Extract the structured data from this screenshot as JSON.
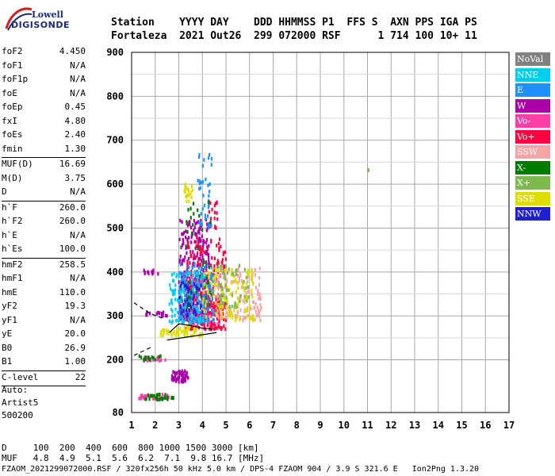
{
  "logo": {
    "line1": "Lowell",
    "line2": "DIGISONDE"
  },
  "header": {
    "labels_row": "Station    YYYY DAY    DDD HHMMSS P1  FFS S  AXN PPS IGA PS",
    "values_row": "Fortaleza  2021 Out26  299 072000 RSF      1 714 100 10+ 11"
  },
  "params": [
    {
      "label": "foF2",
      "value": "4.450"
    },
    {
      "label": "foF1",
      "value": "N/A"
    },
    {
      "label": "foF1p",
      "value": "N/A"
    },
    {
      "label": "foE",
      "value": "N/A"
    },
    {
      "label": "foEp",
      "value": "0.45"
    },
    {
      "label": "fxI",
      "value": "4.80"
    },
    {
      "label": "foEs",
      "value": "2.40"
    },
    {
      "label": "fmin",
      "value": "1.30"
    },
    {
      "sep": true
    },
    {
      "label": "MUF(D)",
      "value": "16.69"
    },
    {
      "label": "M(D)",
      "value": "3.75"
    },
    {
      "label": "D",
      "value": "N/A"
    },
    {
      "sep": true
    },
    {
      "label": "h`F",
      "value": "260.0"
    },
    {
      "label": "h`F2",
      "value": "260.0"
    },
    {
      "label": "h`E",
      "value": "N/A"
    },
    {
      "label": "h`Es",
      "value": "100.0"
    },
    {
      "sep": true
    },
    {
      "label": "hmF2",
      "value": "258.5"
    },
    {
      "label": "hmF1",
      "value": "N/A"
    },
    {
      "label": "hmE",
      "value": "110.0"
    },
    {
      "label": "yF2",
      "value": "19.3"
    },
    {
      "label": "yF1",
      "value": "N/A"
    },
    {
      "label": "yE",
      "value": "20.0"
    },
    {
      "label": "B0",
      "value": "26.9"
    },
    {
      "label": "B1",
      "value": "1.00"
    },
    {
      "sep": true
    },
    {
      "label": "C-level",
      "value": "22"
    },
    {
      "sep": true
    }
  ],
  "auto": {
    "line1": "Auto:",
    "line2": "Artist5",
    "line3": "500200"
  },
  "footer": {
    "d_row": "D     100  200  400  600  800 1000 1500 3000 [km]",
    "muf_row": "MUF   4.8  4.9  5.1  5.6  6.2  7.1  9.8 16.7 [MHz]",
    "file_row": "FZAOM_2021299072000.RSF / 320fx256h 50 kHz 5.0 km / DPS-4 FZAOM 904 / 3.9 S 321.6 E   Ion2Png 1.3.20"
  },
  "legend": [
    {
      "label": "NoVal",
      "color": "#808080"
    },
    {
      "label": "NNE",
      "color": "#00ccee"
    },
    {
      "label": "E",
      "color": "#1e90ff"
    },
    {
      "label": "W",
      "color": "#aa00aa"
    },
    {
      "label": "Vo-",
      "color": "#ff3fa8"
    },
    {
      "label": "Vo+",
      "color": "#ff0040"
    },
    {
      "label": "SSW",
      "color": "#f5a5a5"
    },
    {
      "label": "X-",
      "color": "#007a00"
    },
    {
      "label": "X+",
      "color": "#80b850"
    },
    {
      "label": "SSE",
      "color": "#dddd00"
    },
    {
      "label": "NNW",
      "color": "#2020d0"
    }
  ],
  "chart_data": {
    "type": "scatter",
    "title": "",
    "xlabel": "",
    "ylabel": "",
    "xlim": [
      1,
      17
    ],
    "ylim": [
      80,
      900
    ],
    "x_ticks": [
      1,
      2,
      3,
      4,
      5,
      6,
      7,
      8,
      9,
      10,
      11,
      12,
      13,
      14,
      15,
      16,
      17
    ],
    "y_ticks": [
      80,
      200,
      300,
      400,
      500,
      600,
      700,
      800,
      900
    ],
    "grid": true,
    "legend_position": "right",
    "series": [
      {
        "name": "W",
        "color": "#aa00aa",
        "clusters": [
          {
            "x": [
              2.7,
              3.4
            ],
            "y": [
              150,
              175
            ],
            "n": 60
          },
          {
            "x": [
              3.0,
              4.3
            ],
            "y": [
              290,
              520
            ],
            "n": 300
          },
          {
            "x": [
              1.5,
              2.2
            ],
            "y": [
              395,
              405
            ],
            "n": 12
          },
          {
            "x": [
              1.6,
              2.6
            ],
            "y": [
              300,
              310
            ],
            "n": 15
          }
        ]
      },
      {
        "name": "Vo-",
        "color": "#ff3fa8",
        "clusters": [
          {
            "x": [
              1.3,
              2.6
            ],
            "y": [
              112,
              122
            ],
            "n": 40
          },
          {
            "x": [
              1.5,
              2.5
            ],
            "y": [
              198,
              208
            ],
            "n": 20
          },
          {
            "x": [
              3.5,
              4.8
            ],
            "y": [
              280,
              400
            ],
            "n": 120
          }
        ]
      },
      {
        "name": "Vo+",
        "color": "#ff0040",
        "clusters": [
          {
            "x": [
              3.3,
              5.0
            ],
            "y": [
              270,
              480
            ],
            "n": 220
          },
          {
            "x": [
              4.2,
              4.7
            ],
            "y": [
              500,
              560
            ],
            "n": 20
          }
        ]
      },
      {
        "name": "E",
        "color": "#1e90ff",
        "clusters": [
          {
            "x": [
              3.0,
              4.5
            ],
            "y": [
              285,
              420
            ],
            "n": 180
          },
          {
            "x": [
              3.8,
              4.4
            ],
            "y": [
              500,
              700
            ],
            "n": 40
          }
        ]
      },
      {
        "name": "NNE",
        "color": "#00ccee",
        "clusters": [
          {
            "x": [
              2.6,
              4.2
            ],
            "y": [
              285,
              400
            ],
            "n": 120
          }
        ]
      },
      {
        "name": "SSW",
        "color": "#f5a5a5",
        "clusters": [
          {
            "x": [
              4.5,
              6.5
            ],
            "y": [
              290,
              410
            ],
            "n": 120
          }
        ]
      },
      {
        "name": "SSE",
        "color": "#dddd00",
        "clusters": [
          {
            "x": [
              4.0,
              6.2
            ],
            "y": [
              290,
              410
            ],
            "n": 120
          },
          {
            "x": [
              2.2,
              4.0
            ],
            "y": [
              255,
              275
            ],
            "n": 60
          },
          {
            "x": [
              3.2,
              3.6
            ],
            "y": [
              560,
              600
            ],
            "n": 20
          }
        ]
      },
      {
        "name": "X-",
        "color": "#007a00",
        "clusters": [
          {
            "x": [
              1.3,
              2.8
            ],
            "y": [
              110,
              122
            ],
            "n": 30
          },
          {
            "x": [
              1.3,
              2.3
            ],
            "y": [
              200,
              210
            ],
            "n": 15
          },
          {
            "x": [
              3.3,
              4.4
            ],
            "y": [
              320,
              560
            ],
            "n": 40
          }
        ]
      },
      {
        "name": "X+",
        "color": "#80b850",
        "clusters": [
          {
            "x": [
              4.6,
              6.0
            ],
            "y": [
              320,
              420
            ],
            "n": 50
          },
          {
            "x": [
              11.0,
              11.1
            ],
            "y": [
              630,
              640
            ],
            "n": 2
          }
        ]
      },
      {
        "name": "NNW",
        "color": "#2020d0",
        "clusters": [
          {
            "x": [
              3.0,
              4.0
            ],
            "y": [
              300,
              380
            ],
            "n": 40
          }
        ]
      }
    ],
    "trace_lines": [
      {
        "style": "dashed",
        "points": [
          [
            1.1,
            210
          ],
          [
            1.8,
            228
          ]
        ]
      },
      {
        "style": "solid",
        "points": [
          [
            2.5,
            245
          ],
          [
            4.6,
            262
          ]
        ]
      },
      {
        "style": "solid",
        "points": [
          [
            2.6,
            262
          ],
          [
            3.0,
            282
          ],
          [
            3.5,
            278
          ],
          [
            4.0,
            272
          ],
          [
            4.45,
            270
          ]
        ]
      },
      {
        "style": "dashed",
        "points": [
          [
            1.1,
            330
          ],
          [
            1.8,
            305
          ],
          [
            2.3,
            295
          ]
        ]
      }
    ]
  }
}
